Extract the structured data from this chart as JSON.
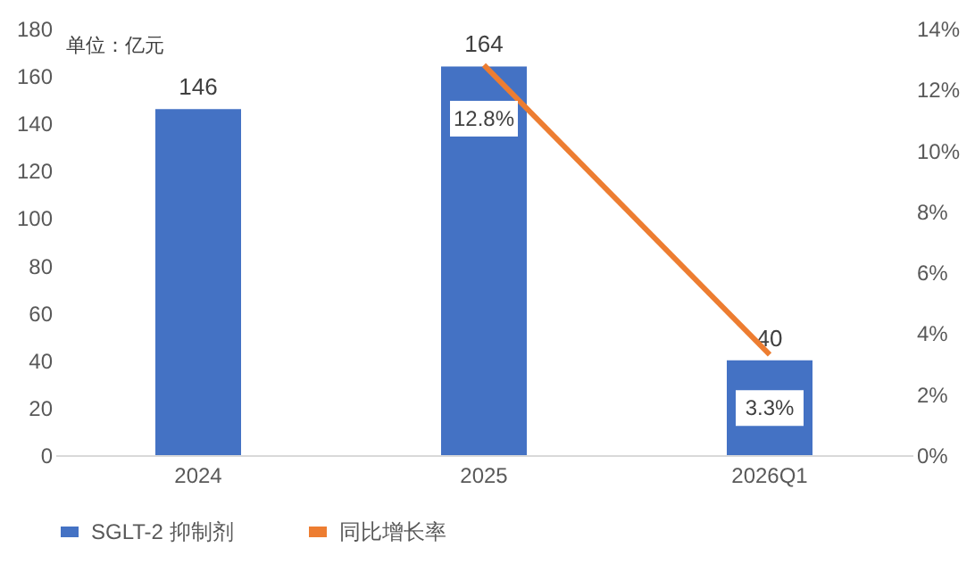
{
  "chart_data": {
    "type": "bar",
    "categories": [
      "2024",
      "2025",
      "2026Q1"
    ],
    "annotations": [
      "单位：亿元"
    ],
    "series": [
      {
        "name": "SGLT-2 抑制剂",
        "color": "#4472c4",
        "values": [
          146,
          164,
          40
        ]
      },
      {
        "name": "同比增长率",
        "type": "line",
        "axis": "y2",
        "color": "#ed7d31",
        "values": [
          null,
          12.8,
          3.3
        ],
        "value_labels": [
          null,
          "12.8%",
          "3.3%"
        ]
      }
    ],
    "ylim": [
      0,
      180
    ],
    "yticks": [
      0,
      20,
      40,
      60,
      80,
      100,
      120,
      140,
      160,
      180
    ],
    "y2lim": [
      0,
      14
    ],
    "y2ticks": [
      {
        "value": 0,
        "label": "0%"
      },
      {
        "value": 2,
        "label": "2%"
      },
      {
        "value": 4,
        "label": "4%"
      },
      {
        "value": 6,
        "label": "6%"
      },
      {
        "value": 8,
        "label": "8%"
      },
      {
        "value": 10,
        "label": "10%"
      },
      {
        "value": 12,
        "label": "12%"
      },
      {
        "value": 14,
        "label": "14%"
      }
    ],
    "data_labels": true,
    "legend": "bottom",
    "grid": false
  }
}
